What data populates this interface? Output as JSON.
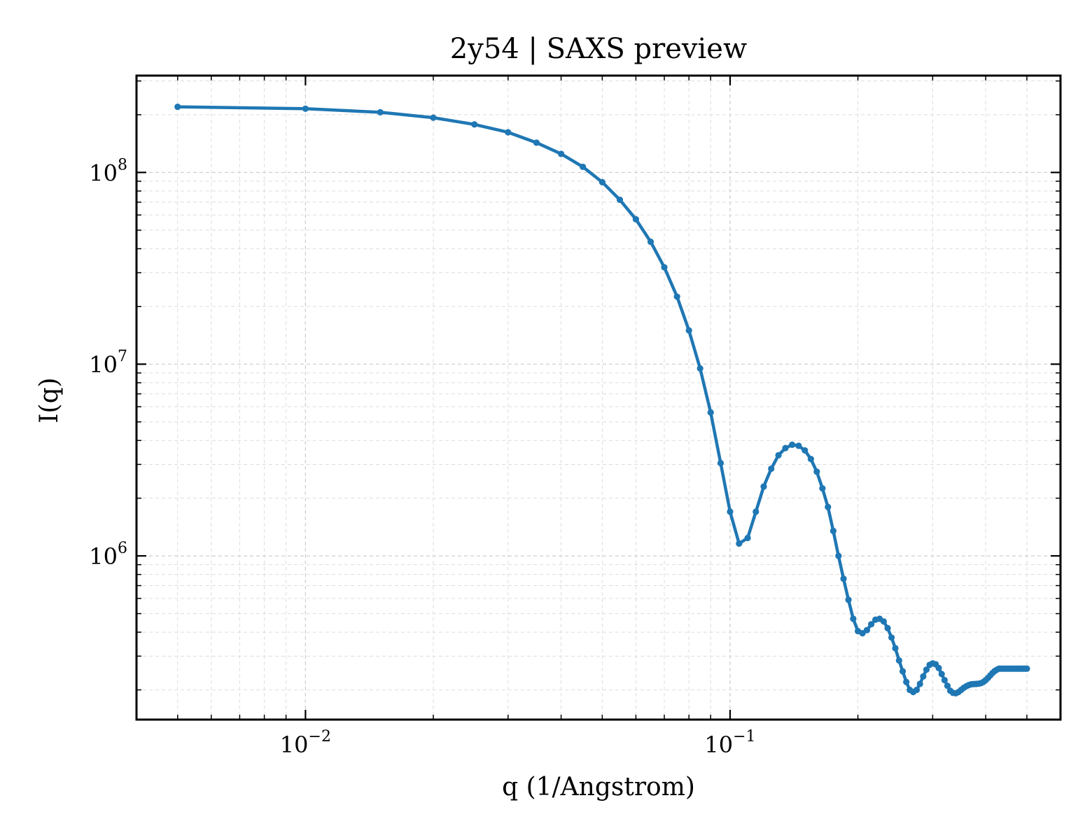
{
  "chart_data": {
    "type": "line",
    "title": "2y54 | SAXS preview",
    "xlabel": "q (1/Angstrom)",
    "ylabel": "I(q)",
    "xscale": "log",
    "yscale": "log",
    "xlim": [
      0.004,
      0.6
    ],
    "ylim": [
      140000,
      320000000
    ],
    "grid": true,
    "color": "#1f77b4",
    "xticks": [
      {
        "value": 0.01,
        "base": "10",
        "exp": "−2"
      },
      {
        "value": 0.1,
        "base": "10",
        "exp": "−1"
      }
    ],
    "yticks": [
      {
        "value": 1000000,
        "base": "10",
        "exp": "6"
      },
      {
        "value": 10000000,
        "base": "10",
        "exp": "7"
      },
      {
        "value": 100000000,
        "base": "10",
        "exp": "8"
      }
    ],
    "series": [
      {
        "marker": "circle",
        "x": [
          0.005,
          0.01,
          0.015,
          0.02,
          0.025,
          0.03,
          0.035,
          0.04,
          0.045,
          0.05,
          0.055,
          0.06,
          0.065,
          0.07,
          0.075,
          0.08,
          0.085,
          0.09,
          0.095,
          0.1,
          0.105,
          0.11,
          0.115,
          0.12,
          0.125,
          0.13,
          0.135,
          0.14,
          0.145,
          0.15,
          0.155,
          0.16,
          0.165,
          0.17,
          0.175,
          0.18,
          0.185,
          0.19,
          0.195,
          0.2,
          0.205,
          0.21,
          0.215,
          0.22,
          0.225,
          0.23,
          0.235,
          0.24,
          0.245,
          0.25,
          0.255,
          0.26,
          0.265,
          0.27,
          0.275,
          0.28,
          0.285,
          0.29,
          0.295,
          0.3,
          0.305,
          0.31,
          0.315,
          0.32,
          0.325,
          0.33,
          0.335,
          0.34,
          0.345,
          0.35,
          0.355,
          0.36,
          0.365,
          0.37,
          0.375,
          0.38,
          0.385,
          0.39,
          0.395,
          0.4,
          0.405,
          0.41,
          0.415,
          0.42,
          0.425,
          0.43,
          0.435,
          0.44,
          0.445,
          0.45,
          0.455,
          0.46,
          0.465,
          0.47,
          0.475,
          0.48,
          0.485,
          0.49,
          0.495,
          0.5
        ],
        "y": [
          220000000,
          215000000,
          206000000,
          193000000,
          178000000,
          162000000,
          143000000,
          125000000,
          107000000,
          89000000,
          72000000,
          57000000,
          43500000,
          32000000,
          22500000,
          15000000,
          9500000,
          5600000,
          3050000,
          1700000,
          1160000,
          1240000,
          1700000,
          2300000,
          2850000,
          3350000,
          3650000,
          3800000,
          3750000,
          3550000,
          3200000,
          2750000,
          2250000,
          1800000,
          1350000,
          1000000,
          760000,
          590000,
          470000,
          405000,
          395000,
          410000,
          440000,
          465000,
          470000,
          455000,
          420000,
          375000,
          330000,
          285000,
          250000,
          220000,
          200000,
          195000,
          200000,
          215000,
          235000,
          255000,
          270000,
          275000,
          272000,
          260000,
          242000,
          225000,
          210000,
          198000,
          193000,
          192000,
          195000,
          200000,
          205000,
          209000,
          212000,
          214000,
          214500,
          215000,
          215500,
          217000,
          220000,
          225000,
          231000,
          238000,
          245000,
          251000,
          255000,
          258000,
          258000,
          258000,
          258000,
          258000,
          258000,
          258000,
          258000,
          258000,
          258000,
          258000,
          258000,
          258000,
          258000,
          258000
        ]
      }
    ]
  }
}
